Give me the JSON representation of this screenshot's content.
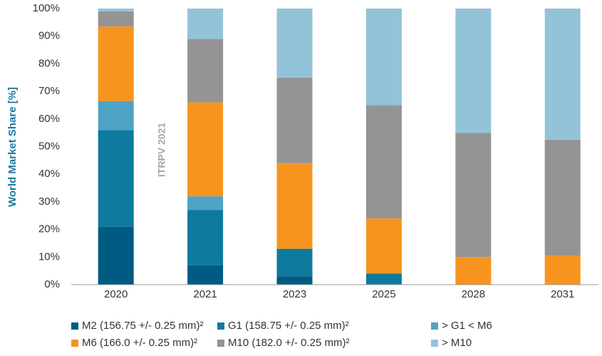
{
  "chart_data": {
    "type": "stacked_bar",
    "y_label": "World Market Share [%]",
    "annotation": "ITRPV 2021",
    "categories": [
      "2020",
      "2021",
      "2023",
      "2025",
      "2028",
      "2031"
    ],
    "series": [
      {
        "name": "M2 (156.75 +/- 0.25 mm)²",
        "color": "#005b82",
        "values": [
          21,
          7,
          3,
          0,
          0,
          0
        ]
      },
      {
        "name": "G1 (158.75 +/- 0.25 mm)²",
        "color": "#0e7a9e",
        "values": [
          35,
          20,
          10,
          4,
          0,
          0
        ]
      },
      {
        "name": "> G1 < M6",
        "color": "#4fa3c4",
        "values": [
          10.5,
          5,
          0,
          0,
          0,
          0
        ]
      },
      {
        "name": "M6 (166.0 +/- 0.25 mm)²",
        "color": "#f7941d",
        "values": [
          27,
          34,
          31,
          20,
          10,
          10.5
        ]
      },
      {
        "name": "M10 (182.0 +/- 0.25 mm)²",
        "color": "#949494",
        "values": [
          5.5,
          23,
          31,
          41,
          45,
          42
        ]
      },
      {
        "name": "> M10",
        "color": "#93c3d9",
        "values": [
          1,
          11,
          25,
          35,
          45,
          47.5
        ]
      }
    ],
    "ylim": [
      0,
      100
    ],
    "yticks": [
      {
        "value": 0,
        "label": "0%"
      },
      {
        "value": 10,
        "label": "10%"
      },
      {
        "value": 20,
        "label": "20%"
      },
      {
        "value": 30,
        "label": "30%"
      },
      {
        "value": 40,
        "label": "40%"
      },
      {
        "value": 50,
        "label": "50%"
      },
      {
        "value": 60,
        "label": "60%"
      },
      {
        "value": 70,
        "label": "70%"
      },
      {
        "value": 80,
        "label": "80%"
      },
      {
        "value": 90,
        "label": "90%"
      },
      {
        "value": 100,
        "label": "100%"
      }
    ],
    "grid": false
  }
}
